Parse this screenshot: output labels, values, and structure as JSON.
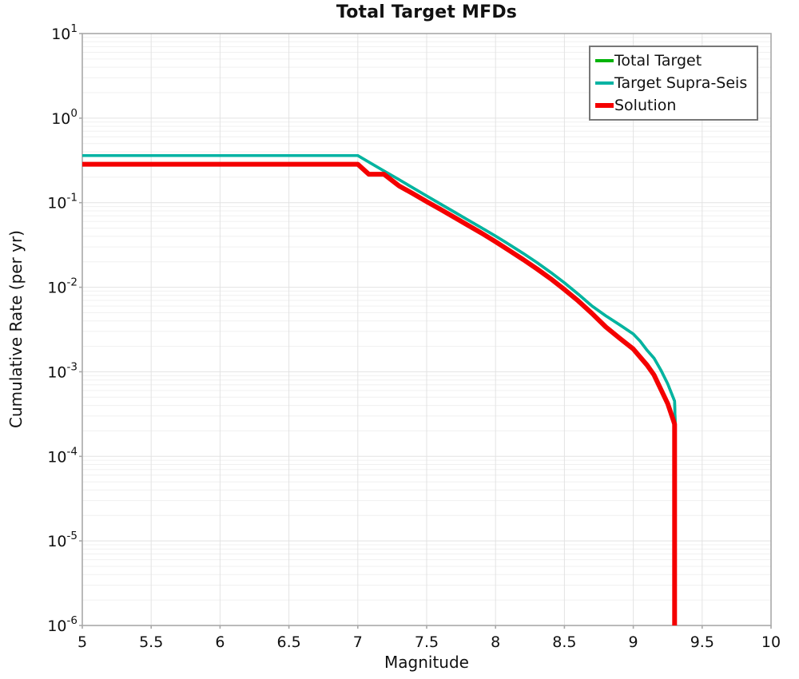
{
  "chart_data": {
    "type": "line",
    "title": "Total Target MFDs",
    "xlabel": "Magnitude",
    "ylabel": "Cumulative Rate (per yr)",
    "x_axis": {
      "min": 5,
      "max": 10,
      "tick_step": 0.5,
      "tick_labels": [
        "5",
        "5.5",
        "6",
        "6.5",
        "7",
        "7.5",
        "8",
        "8.5",
        "9",
        "9.5",
        "10"
      ]
    },
    "y_axis": {
      "scale": "log",
      "min_exp": -6,
      "max_exp": 1,
      "tick_exponents": [
        1,
        0,
        -1,
        -2,
        -3,
        -4,
        -5,
        -6
      ]
    },
    "grid": {
      "show": true,
      "minor_horizontal": true,
      "vertical_every": 0.5
    },
    "legend_position": "top-right",
    "colors": {
      "grid_minor": "#f0f0f0",
      "grid_major": "#e3e3e3",
      "spine": "#a9a9a9",
      "text": "#111111"
    },
    "series": [
      {
        "name": "Total Target",
        "color": "#00b309",
        "line_width": 3.5,
        "swatch_height": 4,
        "points": [
          [
            5.0,
            0.36
          ],
          [
            7.0,
            0.36
          ],
          [
            7.1,
            0.289
          ],
          [
            7.2,
            0.232
          ],
          [
            7.3,
            0.187
          ],
          [
            7.4,
            0.15
          ],
          [
            7.5,
            0.12
          ],
          [
            7.6,
            0.0967
          ],
          [
            7.7,
            0.0777
          ],
          [
            7.8,
            0.0624
          ],
          [
            7.9,
            0.0502
          ],
          [
            8.0,
            0.0403
          ],
          [
            8.1,
            0.032
          ],
          [
            8.2,
            0.0252
          ],
          [
            8.3,
            0.0196
          ],
          [
            8.4,
            0.015
          ],
          [
            8.5,
            0.0113
          ],
          [
            8.6,
            0.0083
          ],
          [
            8.7,
            0.006
          ],
          [
            8.8,
            0.0046
          ],
          [
            8.9,
            0.0036
          ],
          [
            9.0,
            0.0028
          ],
          [
            9.05,
            0.0023
          ],
          [
            9.1,
            0.0018
          ],
          [
            9.15,
            0.00145
          ],
          [
            9.2,
            0.00105
          ],
          [
            9.25,
            0.00072
          ],
          [
            9.3,
            0.00045
          ],
          [
            9.305,
            0.00023
          ]
        ]
      },
      {
        "name": "Target Supra-Seis",
        "color": "#00b3a3",
        "line_width": 3.5,
        "swatch_height": 4,
        "points": [
          [
            5.0,
            0.36
          ],
          [
            7.0,
            0.36
          ],
          [
            7.1,
            0.289
          ],
          [
            7.2,
            0.232
          ],
          [
            7.3,
            0.187
          ],
          [
            7.4,
            0.15
          ],
          [
            7.5,
            0.12
          ],
          [
            7.6,
            0.0967
          ],
          [
            7.7,
            0.0777
          ],
          [
            7.8,
            0.0624
          ],
          [
            7.9,
            0.0502
          ],
          [
            8.0,
            0.0403
          ],
          [
            8.1,
            0.032
          ],
          [
            8.2,
            0.0252
          ],
          [
            8.3,
            0.0196
          ],
          [
            8.4,
            0.015
          ],
          [
            8.5,
            0.0113
          ],
          [
            8.6,
            0.0083
          ],
          [
            8.7,
            0.006
          ],
          [
            8.8,
            0.0046
          ],
          [
            8.9,
            0.0036
          ],
          [
            9.0,
            0.0028
          ],
          [
            9.05,
            0.0023
          ],
          [
            9.1,
            0.0018
          ],
          [
            9.15,
            0.00145
          ],
          [
            9.2,
            0.00105
          ],
          [
            9.25,
            0.00072
          ],
          [
            9.3,
            0.00045
          ],
          [
            9.305,
            0.00023
          ]
        ]
      },
      {
        "name": "Solution",
        "color": "#f40000",
        "line_width": 6,
        "swatch_height": 6,
        "points": [
          [
            5.0,
            0.285
          ],
          [
            7.0,
            0.285
          ],
          [
            7.08,
            0.217
          ],
          [
            7.19,
            0.217
          ],
          [
            7.3,
            0.158
          ],
          [
            7.4,
            0.128
          ],
          [
            7.5,
            0.103
          ],
          [
            7.6,
            0.0835
          ],
          [
            7.7,
            0.0672
          ],
          [
            7.8,
            0.0541
          ],
          [
            7.9,
            0.0435
          ],
          [
            8.0,
            0.0345
          ],
          [
            8.1,
            0.0272
          ],
          [
            8.2,
            0.0213
          ],
          [
            8.3,
            0.0165
          ],
          [
            8.4,
            0.0126
          ],
          [
            8.5,
            0.0094
          ],
          [
            8.6,
            0.0069
          ],
          [
            8.7,
            0.0049
          ],
          [
            8.8,
            0.0034
          ],
          [
            8.9,
            0.0025
          ],
          [
            9.0,
            0.00186
          ],
          [
            9.1,
            0.0012
          ],
          [
            9.15,
            0.00092
          ],
          [
            9.2,
            0.00062
          ],
          [
            9.25,
            0.00042
          ],
          [
            9.29,
            0.00027
          ],
          [
            9.3,
            0.00024
          ],
          [
            9.3,
            1e-06
          ]
        ]
      }
    ]
  }
}
